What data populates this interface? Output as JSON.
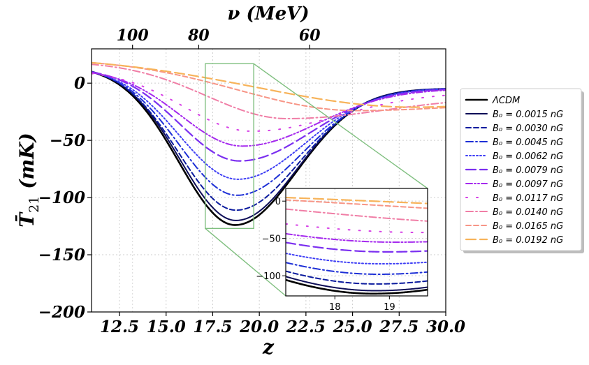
{
  "chart_data": {
    "type": "line",
    "xlabel": "z",
    "ylabel": "T̄21 (mK)",
    "ylabel_main": "T̄",
    "ylabel_sub": "21",
    "ylabel_unit": "(mK)",
    "xlim": [
      11.0,
      30.0
    ],
    "ylim": [
      -200,
      30
    ],
    "xticks": [
      12.5,
      15.0,
      17.5,
      20.0,
      22.5,
      25.0,
      27.5,
      30.0
    ],
    "xtick_labels": [
      "12.5",
      "15.0",
      "17.5",
      "20.0",
      "22.5",
      "25.0",
      "27.5",
      "30.0"
    ],
    "yticks": [
      0,
      -50,
      -100,
      -150,
      -200
    ],
    "ytick_labels": [
      "0",
      "−50",
      "−100",
      "−150",
      "−200"
    ],
    "top_axis": {
      "label": "ν (MeV)",
      "ticks": [
        {
          "z": 13.2,
          "label": "100"
        },
        {
          "z": 16.75,
          "label": "80"
        },
        {
          "z": 22.7,
          "label": "60"
        }
      ]
    },
    "grid": true,
    "legend_position": "outside-right",
    "series": [
      {
        "name": "ΛCDM",
        "color": "#000000",
        "dash": "solid",
        "width": 2.6,
        "trough": 124,
        "zmin": 18.7,
        "sl": 3.0,
        "sr": 3.3,
        "start": 15,
        "end": -5,
        "w": 1.0
      },
      {
        "name": "B₀ = 0.0015 nG",
        "color": "#0d0d57",
        "dash": "solid",
        "width": 2.0,
        "trough": 120,
        "zmin": 18.75,
        "sl": 3.0,
        "sr": 3.3,
        "start": 15,
        "end": -4.5,
        "w": 1.0
      },
      {
        "name": "B₀ = 0.0030 nG",
        "color": "#0b1b9e",
        "dash": "dashed",
        "width": 2.0,
        "trough": 111,
        "zmin": 18.75,
        "sl": 3.05,
        "sr": 3.4,
        "start": 15,
        "end": -4.5,
        "w": 1.0
      },
      {
        "name": "B₀ = 0.0045 nG",
        "color": "#1d2fd6",
        "dash": "dashdot",
        "width": 2.0,
        "trough": 98,
        "zmin": 18.8,
        "sl": 3.1,
        "sr": 3.5,
        "start": 14.5,
        "end": -4.5,
        "w": 1.0
      },
      {
        "name": "B₀ = 0.0062 nG",
        "color": "#3f3ff5",
        "dash": "dotted",
        "width": 2.0,
        "trough": 84,
        "zmin": 18.85,
        "sl": 3.15,
        "sr": 3.6,
        "start": 14,
        "end": -4.5,
        "w": 1.0
      },
      {
        "name": "B₀ = 0.0079 nG",
        "color": "#7b2ff0",
        "dash": "longdash",
        "width": 2.2,
        "trough": 68,
        "zmin": 18.95,
        "sl": 3.2,
        "sr": 3.8,
        "start": 13.5,
        "end": -4.5,
        "w": 1.0
      },
      {
        "name": "B₀ = 0.0097 nG",
        "color": "#a52aee",
        "dash": "dashdotdot",
        "width": 2.0,
        "trough": 55,
        "zmin": 19.1,
        "sl": 3.3,
        "sr": 4.0,
        "start": 12.5,
        "end": -5,
        "w": 1.0
      },
      {
        "name": "B₀ = 0.0117 nG",
        "color": "#d63fe6",
        "dash": "sparse",
        "width": 2.0,
        "trough": 42,
        "zmin": 19.6,
        "sl": 3.6,
        "sr": 4.6,
        "start": 11.5,
        "end": -8,
        "w": 0.9
      },
      {
        "name": "B₀ = 0.0140 nG",
        "color": "#f07ea6",
        "dash": "dashdot",
        "width": 2.0,
        "trough": 31,
        "zmin": 21.5,
        "sl": 4.3,
        "sr": 5.2,
        "start": 19,
        "end": -12,
        "w": 0.8
      },
      {
        "name": "B₀ = 0.0165 nG",
        "color": "#f79586",
        "dash": "dashed",
        "width": 2.0,
        "trough": 24,
        "zmin": 25.2,
        "sl": 6.3,
        "sr": 4.5,
        "start": 21.5,
        "end": -18,
        "w": 0.75
      },
      {
        "name": "B₀ = 0.0192 nG",
        "color": "#f7b35a",
        "dash": "longdash",
        "width": 2.2,
        "trough": 21,
        "zmin": 28.3,
        "sl": 8.5,
        "sr": 4.0,
        "start": 23.5,
        "end": -14,
        "w": 0.7
      }
    ],
    "inset": {
      "xlim": [
        17.1,
        19.7
      ],
      "ylim": [
        -127,
        17
      ],
      "xticks": [
        18,
        19
      ],
      "xtick_labels": [
        "18",
        "19"
      ],
      "yticks": [
        0,
        -50,
        -100
      ],
      "ytick_labels": [
        "0",
        "−50",
        "−100"
      ],
      "zoom_region": {
        "x": [
          17.1,
          19.7
        ],
        "y": [
          -127,
          17
        ]
      }
    }
  }
}
